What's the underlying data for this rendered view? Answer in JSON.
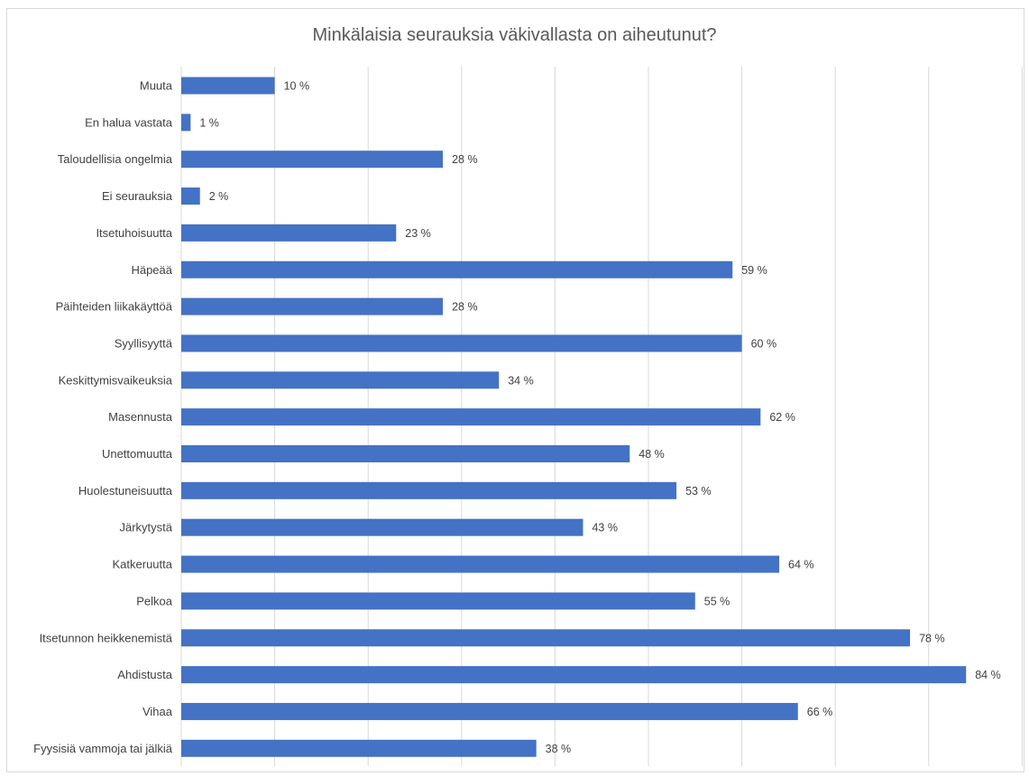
{
  "chart_data": {
    "type": "bar",
    "orientation": "horizontal",
    "title": "Minkälaisia seurauksia väkivallasta on aiheutunut?",
    "categories": [
      "Muuta",
      "En halua vastata",
      "Taloudellisia ongelmia",
      "Ei seurauksia",
      "Itsetuhoisuutta",
      "Häpeää",
      "Päihteiden liikakäyttöä",
      "Syyllisyyttä",
      "Keskittymisvaikeuksia",
      "Masennusta",
      "Unettomuutta",
      "Huolestuneisuutta",
      "Järkytystä",
      "Katkeruutta",
      "Pelkoa",
      "Itsetunnon heikkenemistä",
      "Ahdistusta",
      "Vihaa",
      "Fyysisiä vammoja tai jälkiä"
    ],
    "values": [
      10,
      1,
      28,
      2,
      23,
      59,
      28,
      60,
      34,
      62,
      48,
      53,
      43,
      64,
      55,
      78,
      84,
      66,
      38
    ],
    "data_labels": [
      "10 %",
      "1 %",
      "28 %",
      "2 %",
      "23 %",
      "59 %",
      "28 %",
      "60 %",
      "34 %",
      "62 %",
      "48 %",
      "53 %",
      "43 %",
      "64 %",
      "55 %",
      "78 %",
      "84 %",
      "66 %",
      "38 %"
    ],
    "xlim": [
      0,
      90
    ],
    "grid": true,
    "bar_color": "#4472c4",
    "grid_color": "#d9d9d9"
  }
}
